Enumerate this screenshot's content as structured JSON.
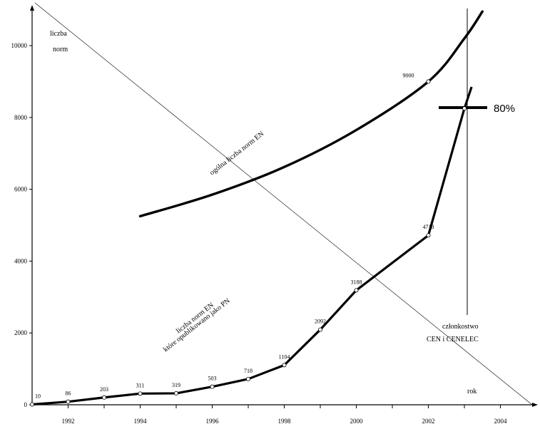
{
  "chart_data": {
    "type": "line",
    "title": "",
    "ylabel": [
      "liczba",
      "norm"
    ],
    "xlabel": "rok",
    "x_ticks": [
      "1992",
      "1994",
      "1996",
      "1998",
      "2000",
      "2002",
      "2004"
    ],
    "y_ticks": [
      "0",
      "2000",
      "4000",
      "6000",
      "8000",
      "10000"
    ],
    "xlim": [
      1991,
      2004.9
    ],
    "ylim": [
      0,
      11000
    ],
    "grid": false,
    "series": [
      {
        "name": "liczba norm EN które opublikowano jako PN",
        "x": [
          1991,
          1992,
          1993,
          1994,
          1995,
          1996,
          1997,
          1998,
          1999,
          2000,
          2002,
          2003,
          2003.2
        ],
        "values": [
          10,
          86,
          203,
          311,
          319,
          503,
          718,
          1104,
          2092,
          3188,
          4718,
          8250,
          8850
        ],
        "point_labels": [
          "10",
          "86",
          "203",
          "311",
          "319",
          "503",
          "718",
          "1104",
          "2092",
          "3188",
          "4718",
          "",
          ""
        ]
      },
      {
        "name": "ogólna liczba norm EN",
        "x": [
          1994,
          1996,
          1998,
          2000,
          2002,
          2003,
          2003.5
        ],
        "values": [
          5250,
          5850,
          6620,
          7650,
          9000,
          10200,
          10950
        ],
        "point_labels": [
          "",
          "",
          "",
          "",
          "9000",
          "",
          ""
        ]
      }
    ],
    "annotations": {
      "total_curve": "ogólna liczba norm EN",
      "adopted_line_1": "liczba norm EN",
      "adopted_line_2": "które opublikowano jako PN",
      "membership_line_1": "członkostwo",
      "membership_line_2": "CEN i CENELEC",
      "percent": "80%"
    }
  }
}
